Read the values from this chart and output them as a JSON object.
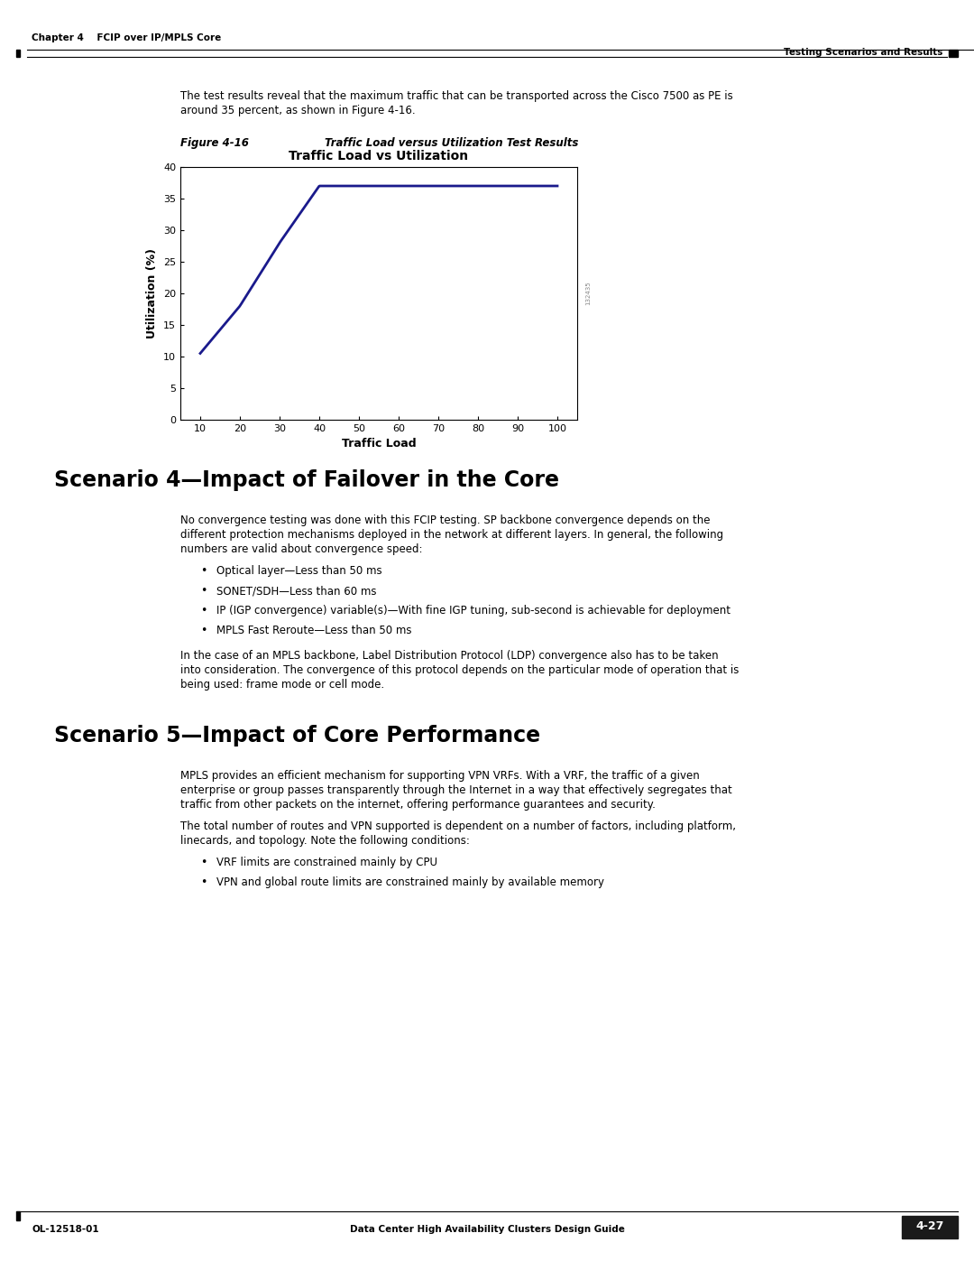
{
  "page_width": 10.8,
  "page_height": 13.97,
  "bg_color": "#ffffff",
  "header_left": "Chapter 4    FCIP over IP/MPLS Core",
  "header_right": "Testing Scenarios and Results",
  "footer_left": "OL-12518-01",
  "footer_right_label": "Data Center High Availability Clusters Design Guide",
  "footer_page": "4-27",
  "intro_text": "The test results reveal that the maximum traffic that can be transported across the Cisco 7500 as PE is\naround 35 percent, as shown in Figure 4-16.",
  "figure_label": "Figure 4-16",
  "figure_title": "Traffic Load versus Utilization Test Results",
  "chart_title": "Traffic Load vs Utilization",
  "chart_xlabel": "Traffic Load",
  "chart_ylabel": "Utilization (%)",
  "chart_x": [
    10,
    20,
    30,
    40,
    50,
    60,
    70,
    80,
    90,
    100
  ],
  "chart_y": [
    10.5,
    18,
    28,
    37,
    37,
    37,
    37,
    37,
    37,
    37
  ],
  "chart_color": "#1a1a8c",
  "chart_xlim": [
    5,
    105
  ],
  "chart_ylim": [
    0,
    40
  ],
  "chart_xticks": [
    10,
    20,
    30,
    40,
    50,
    60,
    70,
    80,
    90,
    100
  ],
  "chart_yticks": [
    0,
    5,
    10,
    15,
    20,
    25,
    30,
    35,
    40
  ],
  "watermark": "132435",
  "section4_title": "Scenario 4—Impact of Failover in the Core",
  "section4_para1": "No convergence testing was done with this FCIP testing. SP backbone convergence depends on the\ndifferent protection mechanisms deployed in the network at different layers. In general, the following\nnumbers are valid about convergence speed:",
  "section4_bullets": [
    "Optical layer—Less than 50 ms",
    "SONET/SDH—Less than 60 ms",
    "IP (IGP convergence) variable(s)—With fine IGP tuning, sub-second is achievable for deployment",
    "MPLS Fast Reroute—Less than 50 ms"
  ],
  "section4_para2": "In the case of an MPLS backbone, Label Distribution Protocol (LDP) convergence also has to be taken\ninto consideration. The convergence of this protocol depends on the particular mode of operation that is\nbeing used: frame mode or cell mode.",
  "section5_title": "Scenario 5—Impact of Core Performance",
  "section5_para1": "MPLS provides an efficient mechanism for supporting VPN VRFs. With a VRF, the traffic of a given\nenterprise or group passes transparently through the Internet in a way that effectively segregates that\ntraffic from other packets on the internet, offering performance guarantees and security.",
  "section5_para2": "The total number of routes and VPN supported is dependent on a number of factors, including platform,\nlinecards, and topology. Note the following conditions:",
  "section5_bullets": [
    "VRF limits are constrained mainly by CPU",
    "VPN and global route limits are constrained mainly by available memory"
  ],
  "link_color": "#0000cc",
  "text_color": "#000000",
  "header_line_color": "#000000"
}
